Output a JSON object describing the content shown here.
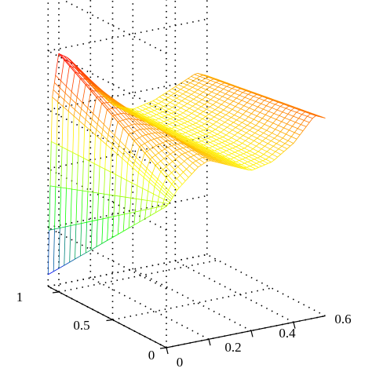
{
  "chart_data": {
    "type": "surface",
    "title": "",
    "xlabel": "",
    "ylabel": "",
    "zlabel": "",
    "x_ticks": [
      "0",
      "0.2",
      "0.4",
      "0.6"
    ],
    "y_ticks": [
      "0",
      "0.5",
      "1"
    ],
    "x_range": [
      0,
      0.75
    ],
    "y_range": [
      0,
      1.1
    ],
    "grid": true,
    "colormap": [
      "#0000ff",
      "#00ff00",
      "#ffff00",
      "#ff0000"
    ],
    "surface_profile": {
      "x": [
        0,
        0.02,
        0.05,
        0.1,
        0.15,
        0.2,
        0.3,
        0.4,
        0.5,
        0.6,
        0.7,
        0.75
      ],
      "z_at_y_max": [
        0.05,
        0.8,
        0.98,
        0.95,
        0.88,
        0.82,
        0.72,
        0.68,
        0.7,
        0.74,
        0.78,
        0.76
      ],
      "z_at_y_min": [
        0.6,
        0.62,
        0.66,
        0.7,
        0.74,
        0.76,
        0.72,
        0.68,
        0.7,
        0.76,
        0.86,
        0.84
      ]
    }
  }
}
